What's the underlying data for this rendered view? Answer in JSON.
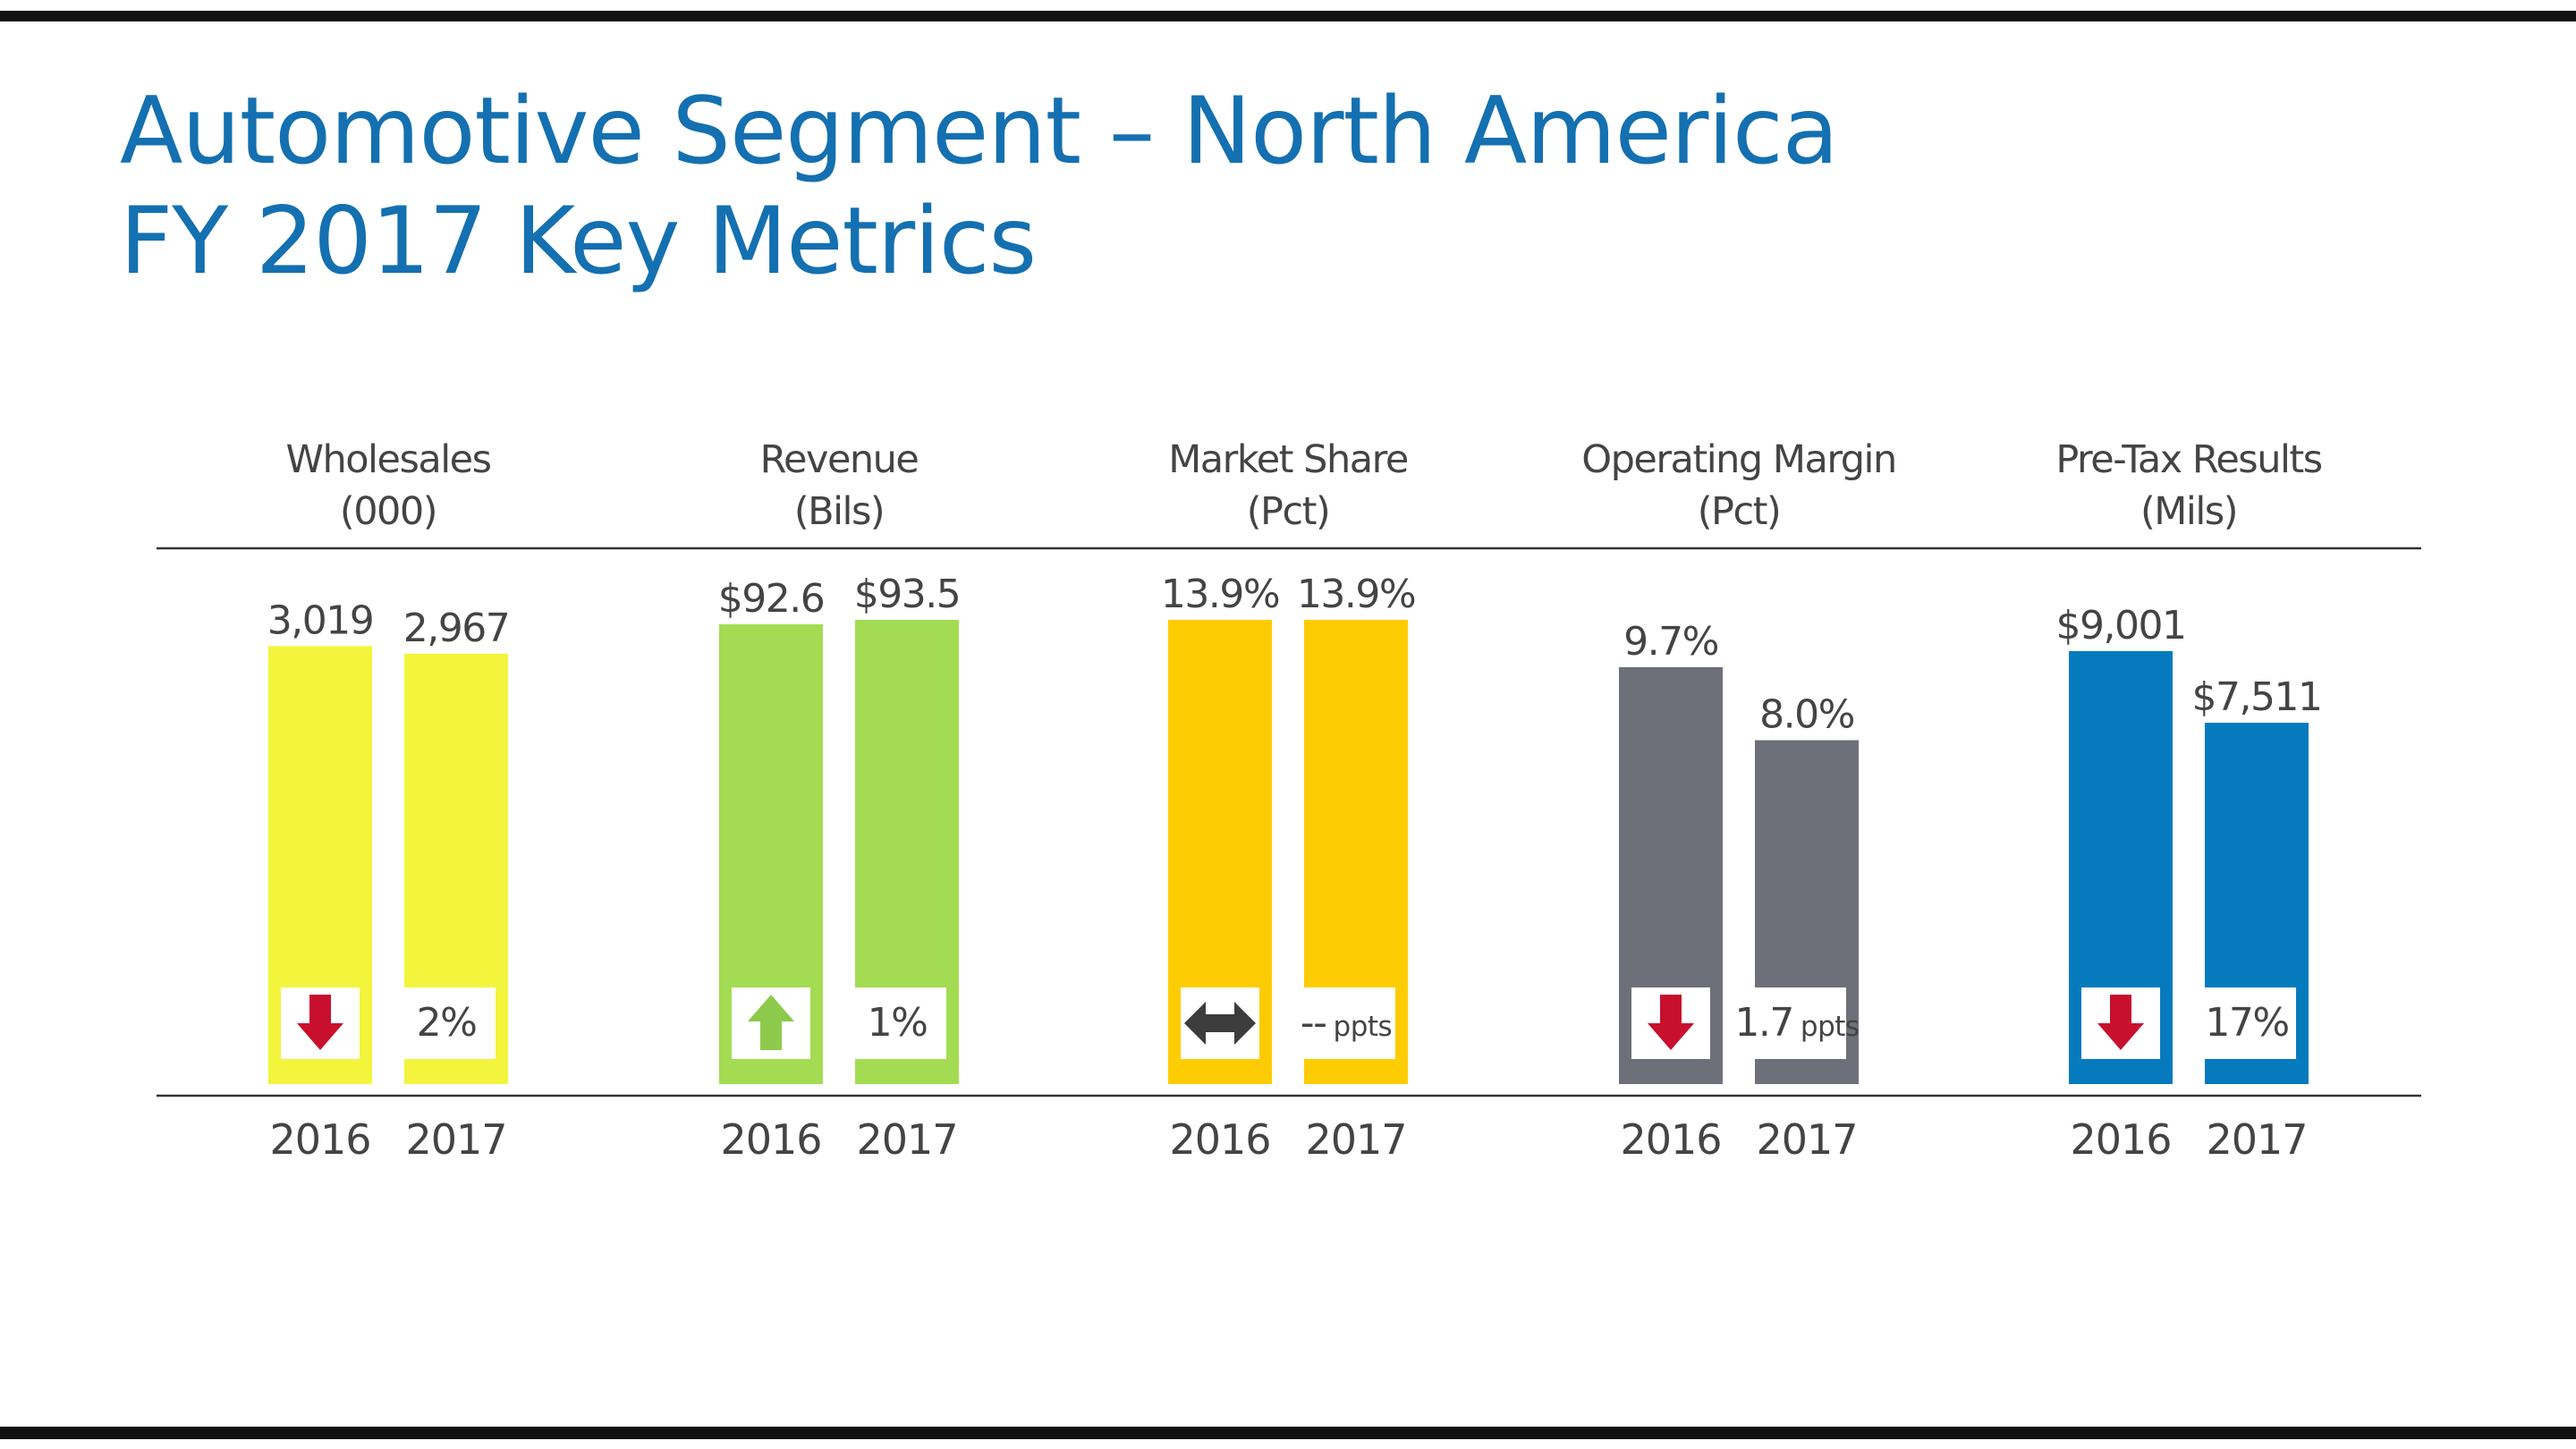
{
  "title": {
    "line1": "Automotive Segment – North America",
    "line2": "FY 2017 Key Metrics"
  },
  "chart_data": {
    "type": "bar",
    "categories": [
      "2016",
      "2017"
    ],
    "panels": [
      {
        "header": [
          "Wholesales",
          "(000)"
        ],
        "color": "#F2F53C",
        "values": [
          3019,
          2967
        ],
        "labels": [
          "3,019",
          "2,967"
        ],
        "ylim": [
          0,
          3200
        ],
        "change": {
          "direction": "down",
          "icon": "down-arrow-icon",
          "value": "2%",
          "unit": ""
        }
      },
      {
        "header": [
          "Revenue",
          "(Bils)"
        ],
        "color": "#A3DC52",
        "values": [
          92.6,
          93.5
        ],
        "labels": [
          "$92.6",
          "$93.5"
        ],
        "ylim": [
          0,
          93.5
        ],
        "change": {
          "direction": "up",
          "icon": "up-arrow-icon",
          "value": "1%",
          "unit": ""
        }
      },
      {
        "header": [
          "Market Share",
          "(Pct)"
        ],
        "color": "#FECC03",
        "values": [
          13.9,
          13.9
        ],
        "labels": [
          "13.9%",
          "13.9%"
        ],
        "ylim": [
          0,
          13.9
        ],
        "change": {
          "direction": "flat",
          "icon": "left-right-arrow-icon",
          "value": "--",
          "unit": "ppts"
        }
      },
      {
        "header": [
          "Operating Margin",
          "(Pct)"
        ],
        "color": "#6E7079",
        "values": [
          9.7,
          8.0
        ],
        "labels": [
          "9.7%",
          "8.0%"
        ],
        "ylim": [
          0,
          10.8
        ],
        "change": {
          "direction": "down",
          "icon": "down-arrow-icon",
          "value": "1.7",
          "unit": "ppts"
        }
      },
      {
        "header": [
          "Pre-Tax Results",
          "(Mils)"
        ],
        "color": "#057BBD",
        "values": [
          9001,
          7511
        ],
        "labels": [
          "$9,001",
          "$7,511"
        ],
        "ylim": [
          0,
          9650
        ],
        "change": {
          "direction": "down",
          "icon": "down-arrow-icon",
          "value": "17%",
          "unit": ""
        }
      }
    ],
    "arrow_colors": {
      "down": "#C8102E",
      "up": "#8DCA4C",
      "flat": "#3C3C3C"
    },
    "grid": false,
    "legend": "none"
  }
}
